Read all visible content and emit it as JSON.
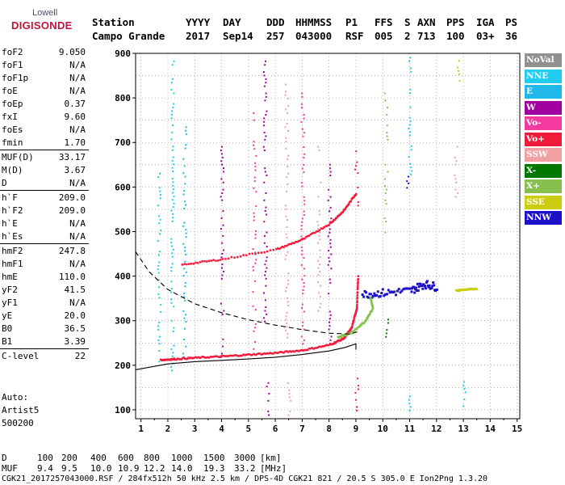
{
  "logo": {
    "line1": "Lowell",
    "line2": "DIGISONDE"
  },
  "header": {
    "row1": [
      "Station",
      "YYYY",
      "DAY",
      "DDD",
      "HHMMSS",
      "P1",
      "FFS",
      "S",
      "AXN",
      "PPS",
      "IGA",
      "PS"
    ],
    "row2": [
      "Campo Grande",
      "2017",
      "Sep14",
      "257",
      "043000",
      "RSF",
      "005",
      "2",
      "713",
      "100",
      "03+",
      "36"
    ]
  },
  "params": [
    {
      "name": "foF2",
      "value": "9.050"
    },
    {
      "name": "foF1",
      "value": "N/A"
    },
    {
      "name": "foF1p",
      "value": "N/A"
    },
    {
      "name": "foE",
      "value": "N/A"
    },
    {
      "name": "foEp",
      "value": "0.37"
    },
    {
      "name": "fxI",
      "value": "9.60"
    },
    {
      "name": "foEs",
      "value": "N/A"
    },
    {
      "name": "fmin",
      "value": "1.70"
    },
    {
      "name": "MUF(D)",
      "value": "33.17"
    },
    {
      "name": "M(D)",
      "value": "3.67"
    },
    {
      "name": "D",
      "value": "N/A"
    },
    {
      "name": "h`F",
      "value": "209.0"
    },
    {
      "name": "h`F2",
      "value": "209.0"
    },
    {
      "name": "h`E",
      "value": "N/A"
    },
    {
      "name": "h`Es",
      "value": "N/A"
    },
    {
      "name": "hmF2",
      "value": "247.8"
    },
    {
      "name": "hmF1",
      "value": "N/A"
    },
    {
      "name": "hmE",
      "value": "110.0"
    },
    {
      "name": "yF2",
      "value": "41.5"
    },
    {
      "name": "yF1",
      "value": "N/A"
    },
    {
      "name": "yE",
      "value": "20.0"
    },
    {
      "name": "B0",
      "value": "36.5"
    },
    {
      "name": "B1",
      "value": "3.39"
    },
    {
      "name": "C-level",
      "value": "22"
    }
  ],
  "auto": {
    "line1": "Auto:",
    "line2": "Artist5",
    "line3": "500200"
  },
  "legend": [
    {
      "label": "NoVal",
      "color": "#909090"
    },
    {
      "label": "NNE",
      "color": "#22ccee"
    },
    {
      "label": "E",
      "color": "#1fb8e8"
    },
    {
      "label": "W",
      "color": "#a0009f"
    },
    {
      "label": "Vo-",
      "color": "#f23aa0"
    },
    {
      "label": "Vo+",
      "color": "#f01a3a"
    },
    {
      "label": "SSW",
      "color": "#f0a0a0"
    },
    {
      "label": "X-",
      "color": "#007800"
    },
    {
      "label": "X+",
      "color": "#88c050"
    },
    {
      "label": "SSE",
      "color": "#cccc10"
    },
    {
      "label": "NNW",
      "color": "#1c10c8"
    }
  ],
  "footer": {
    "row_d_label": "D",
    "row_d_values": [
      "100",
      "200",
      "400",
      "600",
      "800",
      "1000",
      "1500",
      "3000",
      "[km]"
    ],
    "row_muf_label": "MUF",
    "row_muf_values": [
      "9.4",
      "9.5",
      "10.0",
      "10.9",
      "12.2",
      "14.0",
      "19.3",
      "33.2",
      "[MHz]"
    ],
    "info": "CGK21_2017257043000.RSF / 284fx512h 50 kHz 2.5 km / DPS-4D CGK21 821 / 20.5 S 305.0 E Ion2Png 1.3.20"
  },
  "chart_data": {
    "type": "scatter",
    "title": "",
    "xlabel": "",
    "ylabel": "",
    "xlim": [
      0.8,
      15.1
    ],
    "ylim": [
      80,
      900
    ],
    "x_ticks": [
      "1",
      "2",
      "3",
      "4",
      "5",
      "6",
      "7",
      "8",
      "9",
      "10",
      "11",
      "12",
      "13",
      "14",
      "15"
    ],
    "y_ticks": [
      "100",
      "200",
      "300",
      "400",
      "500",
      "600",
      "700",
      "800",
      "900"
    ],
    "y_tick_values": [
      100,
      200,
      300,
      400,
      500,
      600,
      700,
      800,
      900
    ],
    "grid": true,
    "series": [
      {
        "name": "Vo+",
        "values": [
          [
            1.7,
            214
          ],
          [
            2.2,
            216
          ],
          [
            3,
            219
          ],
          [
            4,
            222
          ],
          [
            5,
            226
          ],
          [
            6,
            230
          ],
          [
            7,
            236
          ],
          [
            8,
            248
          ],
          [
            8.5,
            262
          ],
          [
            8.8,
            285
          ],
          [
            9,
            330
          ],
          [
            9.05,
            405
          ]
        ]
      },
      {
        "name": "Vo+",
        "values": [
          [
            2.5,
            428
          ],
          [
            4,
            440
          ],
          [
            6,
            462
          ],
          [
            7,
            485
          ],
          [
            8,
            520
          ],
          [
            8.5,
            548
          ],
          [
            9,
            590
          ]
        ]
      },
      {
        "name": "NNW",
        "values": [
          [
            9.2,
            362
          ],
          [
            10,
            365
          ],
          [
            11,
            370
          ],
          [
            11.5,
            385
          ],
          [
            12,
            378
          ]
        ]
      },
      {
        "name": "X+",
        "values": [
          [
            8.3,
            265
          ],
          [
            8.8,
            275
          ],
          [
            9.3,
            300
          ],
          [
            9.6,
            330
          ],
          [
            9.5,
            355
          ]
        ]
      },
      {
        "name": "SSE",
        "values": [
          [
            12.7,
            370
          ],
          [
            13.0,
            372
          ],
          [
            13.5,
            374
          ]
        ]
      }
    ],
    "profile_solid": [
      [
        0.8,
        190
      ],
      [
        2,
        203
      ],
      [
        3,
        208
      ],
      [
        4,
        211
      ],
      [
        5,
        214
      ],
      [
        6,
        218
      ],
      [
        7,
        224
      ],
      [
        8,
        232
      ],
      [
        8.6,
        240
      ],
      [
        9.0,
        248
      ],
      [
        9.0,
        235
      ]
    ],
    "profile_dashed": [
      [
        0.8,
        455
      ],
      [
        1.3,
        410
      ],
      [
        2,
        370
      ],
      [
        3,
        338
      ],
      [
        4,
        318
      ],
      [
        5,
        302
      ],
      [
        6,
        290
      ],
      [
        7,
        280
      ],
      [
        8,
        272
      ],
      [
        8.8,
        270
      ],
      [
        9.05,
        275
      ]
    ],
    "vertical_traces": [
      {
        "color": "#22ccee",
        "x": 1.65,
        "ymin": 210,
        "ymax": 640
      },
      {
        "color": "#22ccee",
        "x": 2.15,
        "ymin": 190,
        "ymax": 900
      },
      {
        "color": "#1fb8e8",
        "x": 2.6,
        "ymin": 220,
        "ymax": 760
      },
      {
        "color": "#a0009f",
        "x": 4.0,
        "ymin": 220,
        "ymax": 700
      },
      {
        "color": "#f23aa0",
        "x": 5.2,
        "ymin": 230,
        "ymax": 800
      },
      {
        "color": "#a0009f",
        "x": 5.6,
        "ymin": 300,
        "ymax": 900
      },
      {
        "color": "#f0a0a0",
        "x": 6.4,
        "ymin": 240,
        "ymax": 840
      },
      {
        "color": "#f23aa0",
        "x": 7.0,
        "ymin": 250,
        "ymax": 820
      },
      {
        "color": "#f0a0a0",
        "x": 7.6,
        "ymin": 300,
        "ymax": 700
      },
      {
        "color": "#a0009f",
        "x": 8.0,
        "ymin": 250,
        "ymax": 660
      },
      {
        "color": "#f01a3a",
        "x": 9.0,
        "ymin": 560,
        "ymax": 690
      },
      {
        "color": "#88c050",
        "x": 10.1,
        "ymin": 500,
        "ymax": 820
      },
      {
        "color": "#007800",
        "x": 10.15,
        "ymin": 250,
        "ymax": 320
      },
      {
        "color": "#1c10c8",
        "x": 10.9,
        "ymin": 590,
        "ymax": 630
      },
      {
        "color": "#22ccee",
        "x": 11.0,
        "ymin": 630,
        "ymax": 900
      },
      {
        "color": "#f0a0a0",
        "x": 12.7,
        "ymin": 580,
        "ymax": 700
      },
      {
        "color": "#cccc10",
        "x": 12.8,
        "ymin": 840,
        "ymax": 900
      },
      {
        "color": "#22ccee",
        "x": 13.0,
        "ymin": 110,
        "ymax": 180
      },
      {
        "color": "#f01a3a",
        "x": 9.0,
        "ymin": 100,
        "ymax": 180
      },
      {
        "color": "#22ccee",
        "x": 11.0,
        "ymin": 100,
        "ymax": 180
      },
      {
        "color": "#a0009f",
        "x": 5.7,
        "ymin": 90,
        "ymax": 170
      },
      {
        "color": "#f0a0a0",
        "x": 6.5,
        "ymin": 90,
        "ymax": 170
      }
    ]
  }
}
